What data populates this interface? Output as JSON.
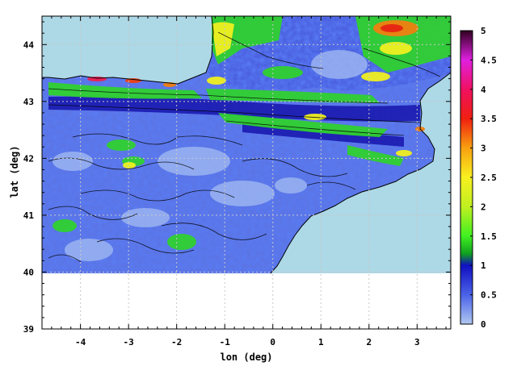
{
  "chart_data": {
    "type": "heatmap",
    "title": "",
    "xlabel": "lon (deg)",
    "ylabel": "lat (deg)",
    "xlim": [
      -4.8,
      3.7
    ],
    "ylim": [
      39,
      44.5
    ],
    "x_ticks": [
      -4,
      -3,
      -2,
      -1,
      0,
      1,
      2,
      3
    ],
    "x_tick_labels": [
      "-4",
      "-3",
      "-2",
      "-1",
      "0",
      "1",
      "2",
      "3"
    ],
    "y_ticks": [
      39,
      40,
      41,
      42,
      43,
      44
    ],
    "y_tick_labels": [
      "39",
      "40",
      "41",
      "42",
      "43",
      "44"
    ],
    "grid": true,
    "data_extent": {
      "lon": [
        -4.8,
        3.7
      ],
      "lat": [
        40,
        44.5
      ]
    },
    "colorbar": {
      "min": 0,
      "max": 5,
      "ticks": [
        0,
        0.5,
        1,
        1.5,
        2,
        2.5,
        3,
        3.5,
        4,
        4.5,
        5
      ],
      "tick_labels": [
        "0",
        "0.5",
        "1",
        "1.5",
        "2",
        "2.5",
        "3",
        "3.5",
        "4",
        "4.5",
        "5"
      ],
      "palette": [
        {
          "v": 0,
          "color": "#b0c8f0"
        },
        {
          "v": 0.5,
          "color": "#4a62e8"
        },
        {
          "v": 1,
          "color": "#1010c0"
        },
        {
          "v": 1.2,
          "color": "#10a020"
        },
        {
          "v": 1.5,
          "color": "#40f020"
        },
        {
          "v": 2,
          "color": "#c0f020"
        },
        {
          "v": 2.5,
          "color": "#f8f020"
        },
        {
          "v": 3,
          "color": "#f8a010"
        },
        {
          "v": 3.5,
          "color": "#f02010"
        },
        {
          "v": 4,
          "color": "#f01060"
        },
        {
          "v": 4.5,
          "color": "#e020e0"
        },
        {
          "v": 5,
          "color": "#300020"
        }
      ]
    },
    "colors": {
      "sea": "#add8e6",
      "land_base": "#5872e6",
      "grid": "#c8c8c8"
    }
  }
}
